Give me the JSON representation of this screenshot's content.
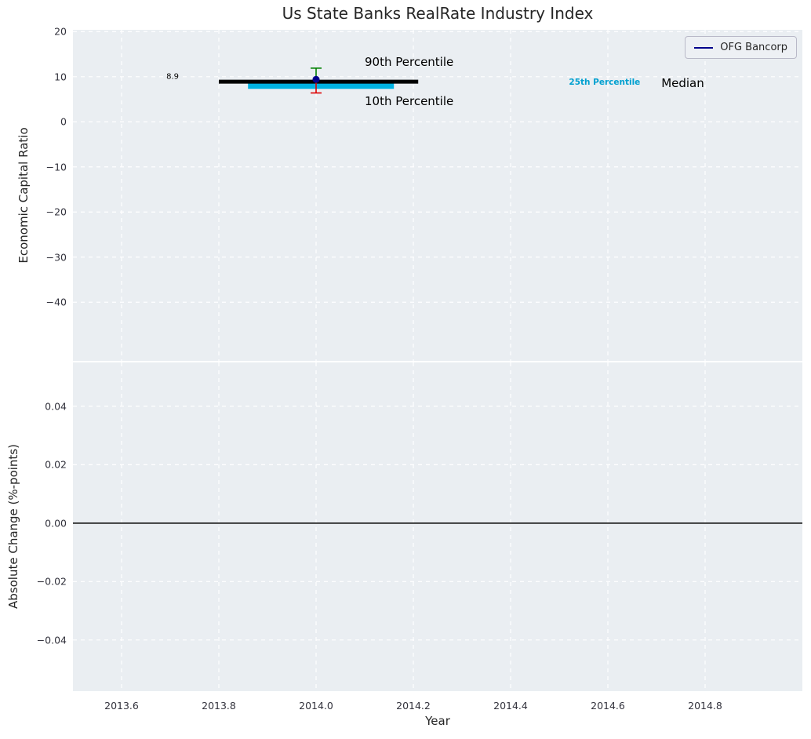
{
  "chart_data": [
    {
      "type": "line",
      "title": "Us State Banks RealRate Industry Index",
      "ylabel": "Economic Capital Ratio",
      "xlim": [
        2013.5,
        2015.0
      ],
      "ylim": [
        -53,
        20.4
      ],
      "grid": true,
      "show_xtick_labels": false,
      "legend": {
        "label": "OFG Bancorp",
        "color": "#00008b",
        "position": "upper right"
      },
      "yticks": [
        {
          "v": 20,
          "label": "20"
        },
        {
          "v": 10,
          "label": "10"
        },
        {
          "v": 0,
          "label": "0"
        },
        {
          "v": -10,
          "label": "−10"
        },
        {
          "v": -20,
          "label": "−20"
        },
        {
          "v": -30,
          "label": "−30"
        },
        {
          "v": -40,
          "label": "−40"
        }
      ],
      "xticks": [
        {
          "v": 2013.6,
          "label": ""
        },
        {
          "v": 2013.8,
          "label": ""
        },
        {
          "v": 2014.0,
          "label": ""
        },
        {
          "v": 2014.2,
          "label": ""
        },
        {
          "v": 2014.4,
          "label": ""
        },
        {
          "v": 2014.6,
          "label": ""
        },
        {
          "v": 2014.8,
          "label": ""
        }
      ],
      "series": [
        {
          "name": "25th Percentile",
          "color": "#00b2e2",
          "width": 8,
          "x": [
            2013.86,
            2014.16
          ],
          "y": [
            8.0,
            8.0
          ]
        },
        {
          "name": "Median",
          "color": "#000000",
          "width": 5,
          "x": [
            2013.8,
            2014.21
          ],
          "y": [
            8.9,
            8.9
          ]
        }
      ],
      "points": [
        {
          "name": "OFG Bancorp",
          "x": 2014.0,
          "y": 9.4,
          "color": "#00008b",
          "r": 4.5
        }
      ],
      "errorbars": [
        {
          "name": "90th Percentile",
          "x": 2014.0,
          "y0": 9.4,
          "y1": 11.9,
          "color": "#008000"
        },
        {
          "name": "10th Percentile",
          "x": 2014.0,
          "y0": 8.9,
          "y1": 6.4,
          "color": "#dd0000"
        }
      ],
      "annotations": [
        {
          "text": "8.9",
          "x": 2013.705,
          "y": 9.9,
          "color": "#000000",
          "size": 10,
          "align": "center",
          "bold": false
        },
        {
          "text": "90th Percentile",
          "x": 2014.1,
          "y": 13.3,
          "color": "#000000",
          "size": 15,
          "align": "left",
          "bold": false
        },
        {
          "text": "10th Percentile",
          "x": 2014.1,
          "y": 4.6,
          "color": "#000000",
          "size": 15,
          "align": "left",
          "bold": false
        },
        {
          "text": "25th Percentile",
          "x": 2014.52,
          "y": 8.6,
          "color": "#00a0d0",
          "size": 10.5,
          "align": "left",
          "bold": true
        },
        {
          "text": "Median",
          "x": 2014.71,
          "y": 8.6,
          "color": "#000000",
          "size": 15,
          "align": "left",
          "bold": false
        }
      ]
    },
    {
      "type": "line",
      "title": "",
      "ylabel": "Absolute Change (%-points)",
      "xlabel": "Year",
      "xlim": [
        2013.5,
        2015.0
      ],
      "ylim": [
        -0.0575,
        0.055
      ],
      "grid": true,
      "show_xtick_labels": true,
      "yticks": [
        {
          "v": 0.04,
          "label": "0.04"
        },
        {
          "v": 0.02,
          "label": "0.02"
        },
        {
          "v": 0,
          "label": "0.00"
        },
        {
          "v": -0.02,
          "label": "−0.02"
        },
        {
          "v": -0.04,
          "label": "−0.04"
        }
      ],
      "xticks": [
        {
          "v": 2013.6,
          "label": "2013.6"
        },
        {
          "v": 2013.8,
          "label": "2013.8"
        },
        {
          "v": 2014.0,
          "label": "2014.0"
        },
        {
          "v": 2014.2,
          "label": "2014.2"
        },
        {
          "v": 2014.4,
          "label": "2014.4"
        },
        {
          "v": 2014.6,
          "label": "2014.6"
        },
        {
          "v": 2014.8,
          "label": "2014.8"
        }
      ],
      "series": [],
      "zero_line": {
        "y": 0,
        "color": "#000000",
        "width": 1.5
      }
    }
  ]
}
